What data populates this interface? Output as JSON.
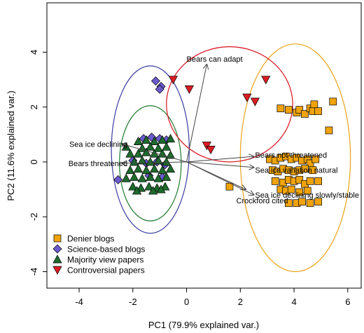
{
  "chart_data": {
    "type": "scatter",
    "title": "",
    "xlabel": "PC1 (79.9% explained var.)",
    "ylabel": "PC2 (11.6% explained var.)",
    "xlim": [
      -5.2,
      6.5
    ],
    "ylim": [
      -4.6,
      5.8
    ],
    "xticks": [
      -4,
      -2,
      0,
      2,
      4,
      6
    ],
    "yticks": [
      -4,
      -2,
      0,
      2,
      4
    ],
    "grid": false,
    "legend_position": "bottom-left",
    "series": [
      {
        "name": "Denier blogs",
        "marker": "square",
        "color": "#f0a30a",
        "points": [
          [
            3.5,
            1.95
          ],
          [
            3.8,
            1.9
          ],
          [
            4.1,
            1.8
          ],
          [
            4.2,
            1.9
          ],
          [
            4.4,
            1.75
          ],
          [
            4.6,
            1.95
          ],
          [
            4.7,
            1.85
          ],
          [
            4.75,
            2.1
          ],
          [
            4.9,
            1.85
          ],
          [
            5.45,
            2.2
          ],
          [
            5.3,
            1.15
          ],
          [
            1.6,
            -0.9
          ],
          [
            3.1,
            0.1
          ],
          [
            3.3,
            0.05
          ],
          [
            3.5,
            0.15
          ],
          [
            3.7,
            0.2
          ],
          [
            3.9,
            0.1
          ],
          [
            4.1,
            0.15
          ],
          [
            4.3,
            0.05
          ],
          [
            4.5,
            0.1
          ],
          [
            4.6,
            -0.05
          ],
          [
            4.8,
            0.1
          ],
          [
            3.2,
            -0.3
          ],
          [
            3.4,
            -0.35
          ],
          [
            3.6,
            -0.25
          ],
          [
            3.8,
            -0.3
          ],
          [
            4.0,
            -0.35
          ],
          [
            4.2,
            -0.3
          ],
          [
            4.4,
            -0.25
          ],
          [
            4.7,
            -0.3
          ],
          [
            3.3,
            -0.7
          ],
          [
            3.6,
            -0.75
          ],
          [
            3.8,
            -0.65
          ],
          [
            4.0,
            -0.7
          ],
          [
            4.2,
            -0.65
          ],
          [
            4.4,
            -0.8
          ],
          [
            4.6,
            -0.7
          ],
          [
            4.9,
            -0.7
          ],
          [
            3.5,
            -1.0
          ],
          [
            3.7,
            -1.05
          ],
          [
            3.9,
            -1.0
          ],
          [
            4.2,
            -1.1
          ],
          [
            4.5,
            -1.05
          ],
          [
            3.8,
            -1.5
          ],
          [
            4.1,
            -1.5
          ],
          [
            4.3,
            -1.45
          ],
          [
            4.6,
            -1.5
          ],
          [
            4.9,
            -1.45
          ]
        ]
      },
      {
        "name": "Science-based blogs",
        "marker": "diamond",
        "color": "#6a5acd",
        "points": [
          [
            -1.15,
            2.95
          ],
          [
            -0.95,
            2.75
          ],
          [
            -1.0,
            2.65
          ],
          [
            -2.55,
            -0.65
          ],
          [
            -1.6,
            0.85
          ],
          [
            -1.3,
            0.9
          ],
          [
            -1.0,
            0.85
          ],
          [
            -0.75,
            0.8
          ],
          [
            -1.5,
            -0.05
          ],
          [
            -1.1,
            0.0
          ],
          [
            -0.8,
            -0.1
          ],
          [
            -1.4,
            -0.5
          ],
          [
            -0.9,
            -0.55
          ],
          [
            -2.0,
            0.05
          ]
        ]
      },
      {
        "name": "Majority view papers",
        "marker": "triangle-up",
        "color": "#1e6b2e",
        "points": [
          [
            -1.8,
            0.75
          ],
          [
            -1.5,
            0.8
          ],
          [
            -1.2,
            0.75
          ],
          [
            -0.9,
            0.8
          ],
          [
            -0.6,
            0.85
          ],
          [
            -1.65,
            0.5
          ],
          [
            -1.35,
            0.55
          ],
          [
            -1.05,
            0.5
          ],
          [
            -0.75,
            0.55
          ],
          [
            -2.1,
            0.3
          ],
          [
            -1.8,
            0.3
          ],
          [
            -1.5,
            0.35
          ],
          [
            -1.2,
            0.3
          ],
          [
            -0.9,
            0.3
          ],
          [
            -0.6,
            0.25
          ],
          [
            -1.95,
            0.0
          ],
          [
            -1.65,
            0.05
          ],
          [
            -1.35,
            0.0
          ],
          [
            -1.05,
            0.05
          ],
          [
            -0.75,
            0.0
          ],
          [
            -2.1,
            -0.3
          ],
          [
            -1.8,
            -0.25
          ],
          [
            -1.5,
            -0.3
          ],
          [
            -1.2,
            -0.25
          ],
          [
            -0.9,
            -0.3
          ],
          [
            -0.6,
            -0.25
          ],
          [
            -1.95,
            -0.55
          ],
          [
            -1.65,
            -0.6
          ],
          [
            -1.35,
            -0.55
          ],
          [
            -1.05,
            -0.6
          ],
          [
            -0.75,
            -0.55
          ],
          [
            -2.0,
            -0.9
          ],
          [
            -1.7,
            -0.95
          ],
          [
            -1.4,
            -0.9
          ],
          [
            -1.1,
            -0.95
          ],
          [
            -0.8,
            -0.9
          ],
          [
            -1.85,
            -1.05
          ],
          [
            -1.25,
            -1.05
          ],
          [
            -0.95,
            -1.0
          ],
          [
            -2.25,
            0.55
          ],
          [
            -2.25,
            -0.6
          ]
        ]
      },
      {
        "name": "Controversial papers",
        "marker": "triangle-down",
        "color": "#dc1c24",
        "points": [
          [
            -0.5,
            3.0
          ],
          [
            0.1,
            2.65
          ],
          [
            2.25,
            2.35
          ],
          [
            2.55,
            2.2
          ],
          [
            2.95,
            3.0
          ],
          [
            0.75,
            0.6
          ],
          [
            0.9,
            0.45
          ]
        ]
      }
    ],
    "ellipses": [
      {
        "series": "Denier blogs",
        "cx": 4.05,
        "cy": 0.15,
        "rx": 2.05,
        "ry": 4.15,
        "color": "#e8a317"
      },
      {
        "series": "Science-based blogs",
        "cx": -1.35,
        "cy": 0.45,
        "rx": 1.45,
        "ry": 3.05,
        "color": "#3a3aa0"
      },
      {
        "series": "Majority view papers",
        "cx": -1.35,
        "cy": -0.05,
        "rx": 1.15,
        "ry": 2.1,
        "color": "#1f7a2e"
      },
      {
        "series": "Controversial papers",
        "cx": 1.6,
        "cy": 2.1,
        "rx": 2.35,
        "ry": 2.1,
        "color": "#d9121f"
      }
    ],
    "loadings": [
      {
        "label": "Bears can adapt",
        "x": 0.75,
        "y": 3.55,
        "label_x": 0.0,
        "label_y": 3.75
      },
      {
        "label": "Sea ice declining",
        "x": -2.4,
        "y": 0.65,
        "label_x": -2.2,
        "label_y": 0.65
      },
      {
        "label": "Bears threatened",
        "x": -2.4,
        "y": -0.05,
        "label_x": -2.2,
        "label_y": -0.05
      },
      {
        "label": "Bears not threatened",
        "x": 2.5,
        "y": 0.2,
        "label_x": 2.55,
        "label_y": 0.25
      },
      {
        "label": "Sea ice variation natural",
        "x": 2.5,
        "y": -0.2,
        "label_x": 2.55,
        "label_y": -0.3
      },
      {
        "label": "Sea ice declining slowly/stable",
        "x": 2.5,
        "y": -1.2,
        "label_x": 2.55,
        "label_y": -1.2
      },
      {
        "label": "Crockford cited",
        "x": 2.2,
        "y": -1.0,
        "label_x": 1.85,
        "label_y": -1.4
      }
    ]
  }
}
